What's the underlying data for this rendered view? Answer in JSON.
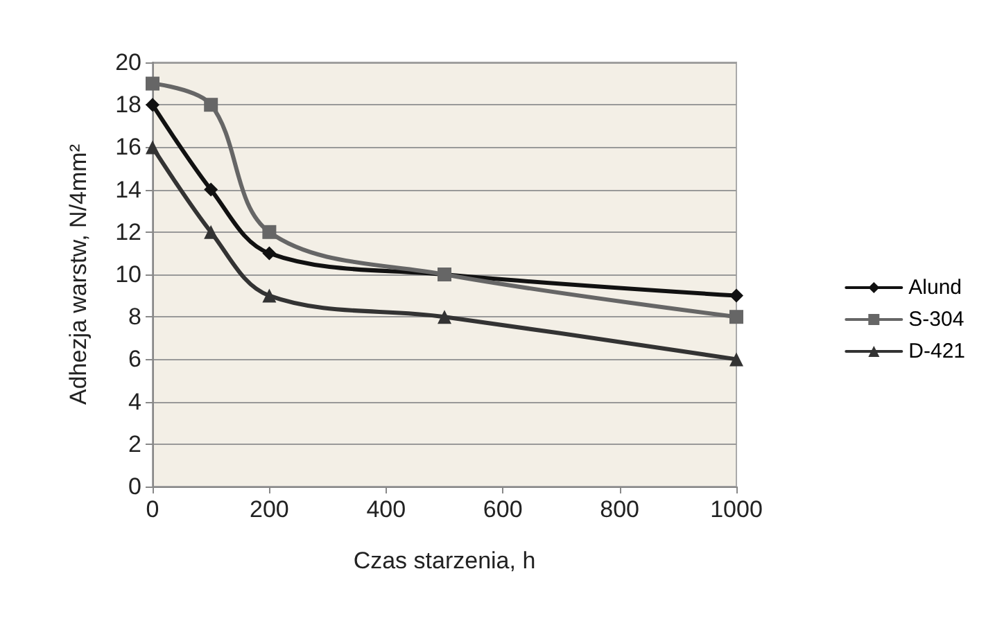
{
  "chart_data": {
    "type": "line",
    "xlabel": "Czas starzenia, h",
    "ylabel": "Adhezja warstw, N/4mm²",
    "x": [
      0,
      100,
      200,
      500,
      1000
    ],
    "series": [
      {
        "name": "Alund",
        "color": "#111111",
        "marker": "diamond",
        "values": [
          18,
          14,
          11,
          10,
          9
        ]
      },
      {
        "name": "S-304",
        "color": "#666666",
        "marker": "square",
        "values": [
          19,
          18,
          12,
          10,
          8
        ]
      },
      {
        "name": "D-421",
        "color": "#333333",
        "marker": "triangle",
        "values": [
          16,
          12,
          9,
          8,
          6
        ]
      }
    ],
    "xlim": [
      0,
      1000
    ],
    "xticks": [
      0,
      200,
      400,
      600,
      800,
      1000
    ],
    "ylim": [
      0,
      20
    ],
    "yticks": [
      0,
      2,
      4,
      6,
      8,
      10,
      12,
      14,
      16,
      18,
      20
    ],
    "grid": "y",
    "legend": "right",
    "line_style": "solid"
  }
}
